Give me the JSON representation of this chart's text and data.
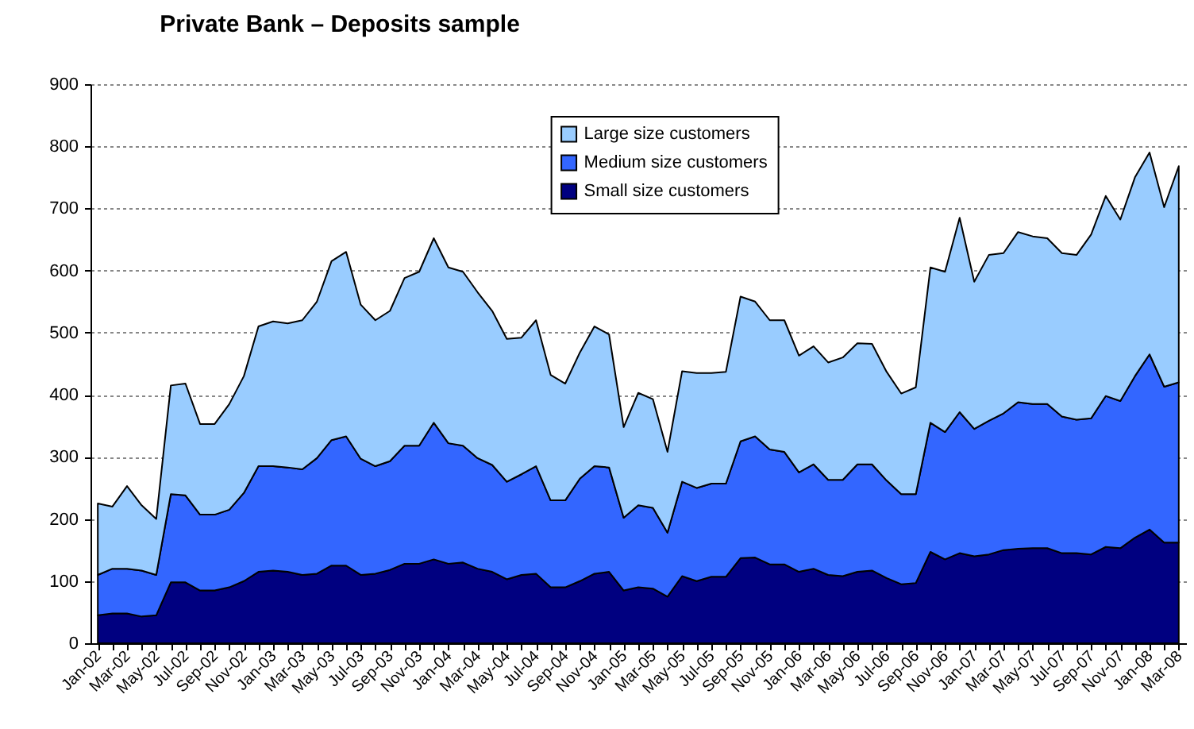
{
  "chart_data": {
    "type": "area",
    "title": "Private Bank – Deposits sample",
    "stacked": true,
    "grid": "y",
    "legend": "top right",
    "categories": [
      "Jan-02",
      null,
      "Mar-02",
      null,
      "May-02",
      null,
      "Jul-02",
      null,
      "Sep-02",
      null,
      "Nov-02",
      null,
      "Jan-03",
      null,
      "Mar-03",
      null,
      "May-03",
      null,
      "Jul-03",
      null,
      "Sep-03",
      null,
      "Nov-03",
      null,
      "Jan-04",
      null,
      "Mar-04",
      null,
      "May-04",
      null,
      "Jul-04",
      null,
      "Sep-04",
      null,
      "Nov-04",
      null,
      "Jan-05",
      null,
      "Mar-05",
      null,
      "May-05",
      null,
      "Jul-05",
      null,
      "Sep-05",
      null,
      "Nov-05",
      null,
      "Jan-06",
      null,
      "Mar-06",
      null,
      "May-06",
      null,
      "Jul-06",
      null,
      "Sep-06",
      null,
      "Nov-06",
      null,
      "Jan-07",
      null,
      "Mar-07",
      null,
      "May-07",
      null,
      "Jul-07",
      null,
      "Sep-07",
      null,
      "Nov-07",
      null,
      "Jan-08",
      null,
      "Mar-08"
    ],
    "ylim": [
      0,
      900
    ],
    "yticks": [
      0,
      100,
      200,
      300,
      400,
      500,
      600,
      700,
      800,
      900
    ],
    "series": [
      {
        "name": "Small size customers",
        "color": "#000080",
        "values": [
          45,
          48,
          48,
          43,
          45,
          98,
          98,
          85,
          85,
          90,
          100,
          115,
          117,
          115,
          110,
          112,
          125,
          125,
          110,
          112,
          118,
          128,
          128,
          135,
          128,
          130,
          120,
          115,
          103,
          110,
          112,
          90,
          90,
          100,
          112,
          115,
          85,
          90,
          88,
          75,
          108,
          100,
          107,
          107,
          137,
          138,
          127,
          127,
          115,
          120,
          110,
          108,
          115,
          117,
          105,
          95,
          97,
          147,
          135,
          145,
          140,
          143,
          150,
          152,
          153,
          153,
          145,
          145,
          143,
          155,
          153,
          170,
          183,
          162,
          162
        ]
      },
      {
        "name": "Medium size customers",
        "color": "#3366ff",
        "values": [
          65,
          72,
          72,
          74,
          65,
          142,
          140,
          122,
          122,
          125,
          142,
          170,
          168,
          168,
          170,
          186,
          202,
          208,
          187,
          173,
          175,
          190,
          190,
          220,
          194,
          188,
          178,
          172,
          157,
          162,
          173,
          140,
          140,
          165,
          173,
          168,
          117,
          132,
          130,
          103,
          152,
          150,
          150,
          150,
          188,
          195,
          185,
          181,
          160,
          168,
          153,
          155,
          173,
          171,
          157,
          145,
          143,
          208,
          205,
          227,
          205,
          215,
          220,
          236,
          232,
          232,
          220,
          215,
          219,
          243,
          237,
          260,
          282,
          251,
          258
        ]
      },
      {
        "name": "Large size customers",
        "color": "#99ccff",
        "values": [
          115,
          100,
          133,
          105,
          90,
          175,
          180,
          146,
          146,
          170,
          188,
          225,
          233,
          232,
          240,
          252,
          288,
          297,
          248,
          235,
          242,
          270,
          280,
          297,
          283,
          280,
          267,
          248,
          230,
          220,
          235,
          202,
          188,
          203,
          225,
          214,
          146,
          181,
          175,
          130,
          178,
          185,
          178,
          180,
          233,
          217,
          208,
          212,
          188,
          190,
          189,
          197,
          195,
          194,
          175,
          162,
          172,
          250,
          258,
          313,
          237,
          267,
          258,
          274,
          270,
          267,
          263,
          265,
          296,
          322,
          292,
          320,
          325,
          289,
          348
        ]
      }
    ]
  }
}
